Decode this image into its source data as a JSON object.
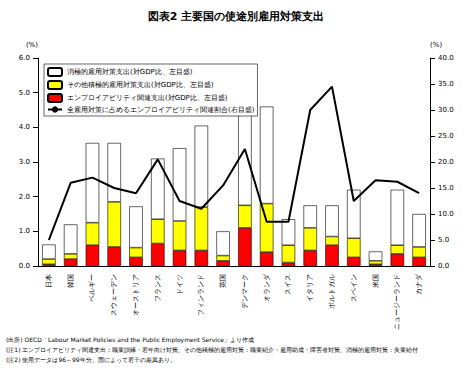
{
  "chart_data": {
    "type": "bar",
    "title": "図表2 主要国の使途別雇用対策支出",
    "ylabel": "(%)",
    "y2label": "(%)",
    "stacked": true,
    "grid": false,
    "legend": "upper left",
    "categories": [
      "日本",
      "韓国",
      "ベルギー",
      "スウェーデン",
      "オーストリア",
      "フランス",
      "ドイツ",
      "フィンランド",
      "英国",
      "デンマーク",
      "オランダ",
      "スイス",
      "イタリア",
      "ポルトガル",
      "スペイン",
      "米国",
      "ニュージーランド",
      "カナダ"
    ],
    "series": [
      {
        "name": "消極的雇用対策支出(対GDP比、左目盛)",
        "type": "bar",
        "color": "#ffffff",
        "values": [
          0.42,
          0.85,
          2.3,
          1.7,
          1.19,
          1.75,
          2.1,
          2.35,
          0.7,
          3.15,
          2.8,
          0.75,
          0.65,
          0.9,
          1.4,
          0.27,
          1.6,
          0.95
        ]
      },
      {
        "name": "その他積極的雇用対策支出(対GDP比、左目盛)",
        "type": "bar",
        "color": "#ffff00",
        "values": [
          0.15,
          0.15,
          0.65,
          1.3,
          0.28,
          0.7,
          0.85,
          1.25,
          0.15,
          0.65,
          1.4,
          0.5,
          0.65,
          0.25,
          0.55,
          0.1,
          0.25,
          0.3
        ]
      },
      {
        "name": "エンプロイアビリティ関連支出(対GDP比、左目盛)",
        "type": "bar",
        "color": "#ff0000",
        "values": [
          0.05,
          0.2,
          0.6,
          0.55,
          0.25,
          0.65,
          0.45,
          0.45,
          0.15,
          1.1,
          0.4,
          0.1,
          0.45,
          0.6,
          0.25,
          0.05,
          0.35,
          0.25
        ]
      },
      {
        "name": "全雇用対策に占めるエンプロイアビリティ関連割合(右目盛)",
        "type": "line",
        "color": "#000000",
        "marker": "none",
        "axis": "y2",
        "values": [
          5.0,
          16.0,
          17.0,
          15.0,
          14.0,
          20.5,
          12.5,
          11.0,
          15.5,
          22.5,
          8.5,
          8.5,
          30.0,
          34.5,
          12.5,
          16.5,
          16.2,
          14.0
        ]
      }
    ],
    "ylim": [
      0,
      6
    ],
    "yticks": [
      {
        "value": 0,
        "label": "0.0"
      },
      {
        "value": 1,
        "label": "1.0"
      },
      {
        "value": 2,
        "label": "2.0"
      },
      {
        "value": 3,
        "label": "3.0"
      },
      {
        "value": 4,
        "label": "4.0"
      },
      {
        "value": 5,
        "label": "5.0"
      },
      {
        "value": 6,
        "label": "6.0"
      }
    ],
    "y2lim": [
      0,
      40
    ],
    "y2ticks": [
      {
        "value": 0,
        "label": "0.0"
      },
      {
        "value": 5,
        "label": "5.0"
      },
      {
        "value": 10,
        "label": "10.0"
      },
      {
        "value": 15,
        "label": "15.0"
      },
      {
        "value": 20,
        "label": "20.0"
      },
      {
        "value": 25,
        "label": "25.0"
      },
      {
        "value": 30,
        "label": "30.0"
      },
      {
        "value": 35,
        "label": "35.0"
      },
      {
        "value": 40,
        "label": "40.0"
      }
    ],
    "notes": [
      "(出所) OECD「Labour Market Policies and the Public Employment Service」より作成",
      "(注1) エンプロイアビリティ関連支出：職業訓練・若年向け対策、その他積極的雇用対策：職業紹介・雇用助成・障害者対策、消極的雇用対策：失業給付",
      "(注2) 使用データは96～99年分。国によって若干の差異あり。"
    ]
  }
}
